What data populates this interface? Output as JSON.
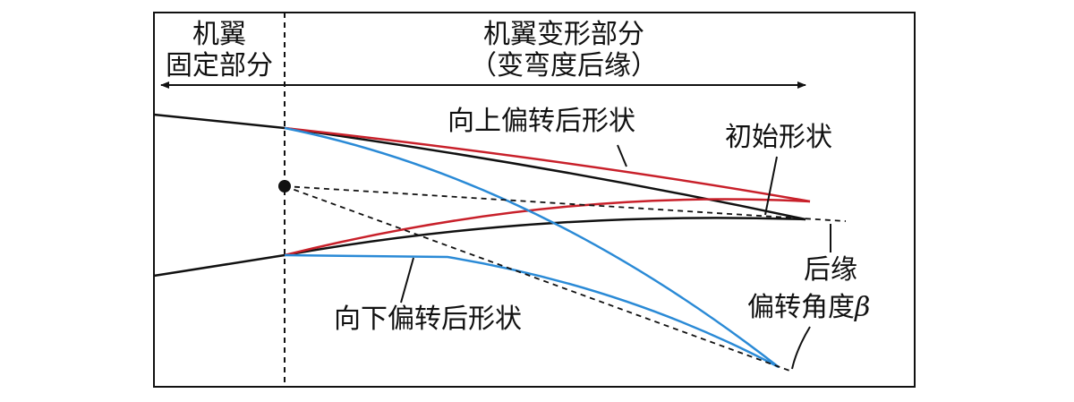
{
  "labels": {
    "fixed_line1": "机翼",
    "fixed_line2": "固定部分",
    "morph_line1": "机翼变形部分",
    "morph_line2": "（变弯度后缘）",
    "up_shape": "向上偏转后形状",
    "initial_shape": "初始形状",
    "down_shape": "向下偏转后形状",
    "te_line1": "后缘",
    "te_line2": "偏转角度",
    "beta": "β"
  }
}
